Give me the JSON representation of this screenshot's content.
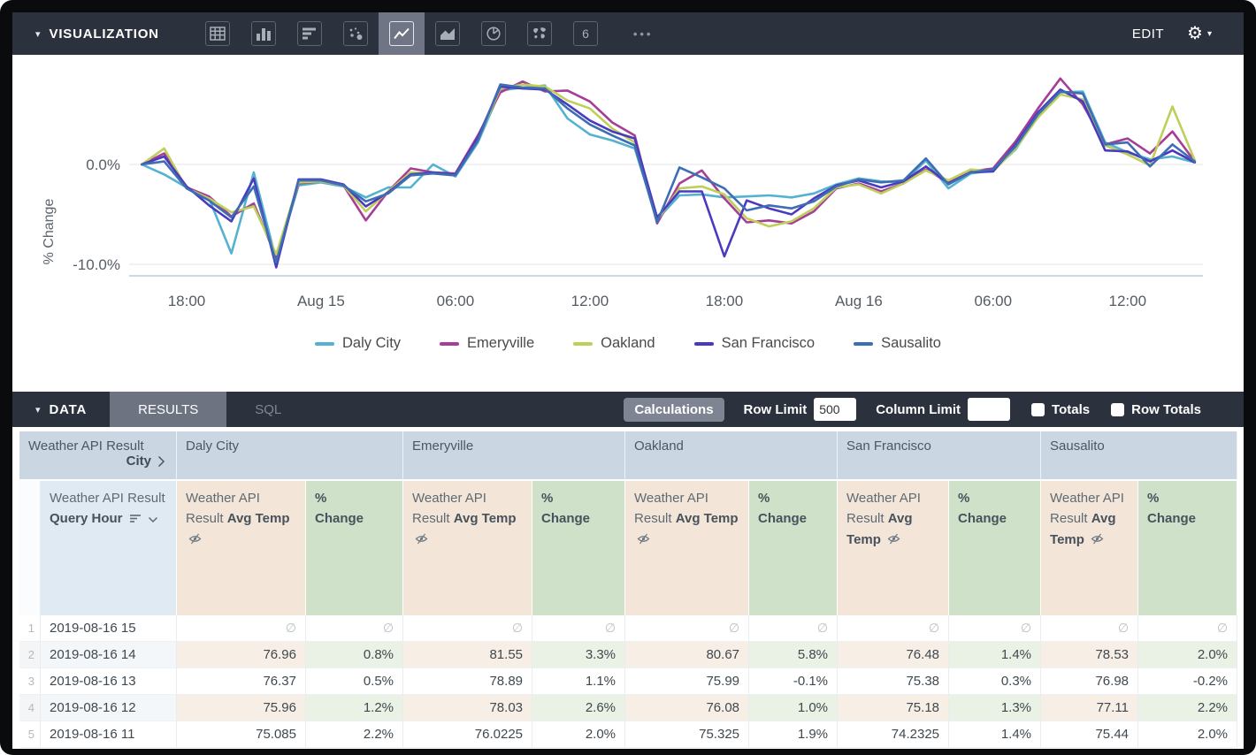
{
  "viz_bar": {
    "caret": "▾",
    "title": "VISUALIZATION",
    "icons": [
      {
        "name": "table"
      },
      {
        "name": "column-chart"
      },
      {
        "name": "bar-chart"
      },
      {
        "name": "scatter-plot"
      },
      {
        "name": "line-chart",
        "selected": true
      },
      {
        "name": "area-chart"
      },
      {
        "name": "pie-chart"
      },
      {
        "name": "map"
      },
      {
        "name": "single-value"
      }
    ],
    "more_icon": "•••",
    "edit_label": "EDIT",
    "gear_icon": "⚙",
    "gear_caret": "▾"
  },
  "chart_data": {
    "type": "line",
    "title": "",
    "ylabel": "% Change",
    "legend_position": "bottom",
    "grid": "horizontal",
    "ylim": [
      -11.5,
      9.8
    ],
    "y_ticks": [
      {
        "value": 0,
        "label": "0.0%"
      },
      {
        "value": -10,
        "label": "-10.0%"
      }
    ],
    "x_ticks": [
      {
        "index": 2,
        "label": "18:00"
      },
      {
        "index": 8,
        "label": "Aug 15"
      },
      {
        "index": 14,
        "label": "06:00"
      },
      {
        "index": 20,
        "label": "12:00"
      },
      {
        "index": 26,
        "label": "18:00"
      },
      {
        "index": 32,
        "label": "Aug 16"
      },
      {
        "index": 38,
        "label": "06:00"
      },
      {
        "index": 44,
        "label": "12:00"
      }
    ],
    "x_labels": [
      "Aug 14 16:00",
      "Aug 14 17:00",
      "Aug 14 18:00",
      "Aug 14 19:00",
      "Aug 14 20:00",
      "Aug 14 21:00",
      "Aug 14 22:00",
      "Aug 14 23:00",
      "Aug 15 00:00",
      "Aug 15 01:00",
      "Aug 15 02:00",
      "Aug 15 03:00",
      "Aug 15 04:00",
      "Aug 15 05:00",
      "Aug 15 06:00",
      "Aug 15 07:00",
      "Aug 15 08:00",
      "Aug 15 09:00",
      "Aug 15 10:00",
      "Aug 15 11:00",
      "Aug 15 12:00",
      "Aug 15 13:00",
      "Aug 15 14:00",
      "Aug 15 15:00",
      "Aug 15 16:00",
      "Aug 15 17:00",
      "Aug 15 18:00",
      "Aug 15 19:00",
      "Aug 15 20:00",
      "Aug 15 21:00",
      "Aug 15 22:00",
      "Aug 15 23:00",
      "Aug 16 00:00",
      "Aug 16 01:00",
      "Aug 16 02:00",
      "Aug 16 03:00",
      "Aug 16 04:00",
      "Aug 16 05:00",
      "Aug 16 06:00",
      "Aug 16 07:00",
      "Aug 16 08:00",
      "Aug 16 09:00",
      "Aug 16 10:00",
      "Aug 16 11:00",
      "Aug 16 12:00",
      "Aug 16 13:00",
      "Aug 16 14:00",
      "Aug 16 15:00"
    ],
    "series": [
      {
        "name": "Daly City",
        "color": "#54b2d0",
        "values": [
          0,
          -1.0,
          -2.3,
          -3.4,
          -8.9,
          -0.8,
          -9.6,
          -2.1,
          -1.8,
          -2.2,
          -3.3,
          -2.3,
          -2.3,
          0.0,
          -1.2,
          2.2,
          7.4,
          7.7,
          7.9,
          4.6,
          3.0,
          2.4,
          1.6,
          -5.5,
          -3.1,
          -3.0,
          -3.3,
          -3.2,
          -3.1,
          -3.3,
          -2.9,
          -2.0,
          -1.4,
          -1.7,
          -1.8,
          0.4,
          -2.4,
          -0.9,
          -0.6,
          1.5,
          4.9,
          7.2,
          7.3,
          2.2,
          1.2,
          0.5,
          0.8,
          0.2
        ]
      },
      {
        "name": "Emeryville",
        "color": "#a63d96",
        "values": [
          0,
          1.1,
          -2.3,
          -3.2,
          -5.2,
          -3.9,
          -9.3,
          -1.9,
          -1.7,
          -2.1,
          -5.6,
          -2.7,
          -0.4,
          -0.8,
          -0.9,
          2.9,
          7.2,
          8.3,
          7.3,
          7.4,
          6.3,
          4.2,
          2.9,
          -5.9,
          -1.9,
          -0.6,
          -3.4,
          -5.8,
          -5.6,
          -5.9,
          -4.7,
          -2.4,
          -1.9,
          -2.7,
          -1.9,
          -0.5,
          -1.8,
          -0.7,
          -0.4,
          2.3,
          5.6,
          8.6,
          6.0,
          2.0,
          2.6,
          1.1,
          3.3,
          0.3
        ]
      },
      {
        "name": "Oakland",
        "color": "#bfcf5a",
        "values": [
          0,
          1.6,
          -2.4,
          -3.4,
          -4.8,
          -4.2,
          -9.0,
          -1.8,
          -1.7,
          -2.1,
          -4.7,
          -2.7,
          -0.8,
          -0.9,
          -1.1,
          2.5,
          7.6,
          8.0,
          7.8,
          6.4,
          5.6,
          3.6,
          2.2,
          -5.6,
          -2.4,
          -2.2,
          -3.0,
          -5.4,
          -6.2,
          -5.7,
          -4.4,
          -2.3,
          -2.0,
          -2.9,
          -1.9,
          -0.6,
          -1.6,
          -0.5,
          -0.7,
          1.6,
          4.7,
          7.0,
          6.5,
          1.9,
          1.0,
          -0.1,
          5.8,
          0.4
        ]
      },
      {
        "name": "San Francisco",
        "color": "#4a3ac0",
        "values": [
          0,
          0.8,
          -2.2,
          -4.1,
          -5.7,
          -1.4,
          -10.3,
          -1.5,
          -1.5,
          -2.0,
          -4.2,
          -2.8,
          -1.0,
          -0.8,
          -1.0,
          2.7,
          7.8,
          7.6,
          7.5,
          6.0,
          4.4,
          3.3,
          2.6,
          -5.3,
          -2.7,
          -2.7,
          -9.2,
          -3.6,
          -4.4,
          -5.0,
          -3.4,
          -2.1,
          -1.6,
          -2.3,
          -1.7,
          -0.2,
          -1.9,
          -0.8,
          -0.7,
          2.0,
          5.2,
          7.5,
          6.3,
          1.4,
          1.3,
          0.3,
          1.4,
          0.2
        ]
      },
      {
        "name": "Sausalito",
        "color": "#3f6db4",
        "values": [
          0,
          0.3,
          -2.4,
          -3.6,
          -5.3,
          -2.2,
          -9.8,
          -1.6,
          -1.6,
          -2.1,
          -3.7,
          -2.9,
          -1.1,
          -0.9,
          -1.1,
          2.4,
          8.0,
          7.7,
          7.6,
          5.6,
          4.0,
          2.9,
          1.9,
          -5.8,
          -0.3,
          -1.3,
          -2.4,
          -4.6,
          -4.1,
          -4.4,
          -3.7,
          -2.2,
          -1.5,
          -1.8,
          -1.6,
          0.6,
          -2.0,
          -0.8,
          -0.5,
          1.8,
          5.0,
          7.3,
          7.1,
          2.0,
          2.2,
          -0.2,
          2.0,
          0.3
        ]
      }
    ]
  },
  "data_bar": {
    "caret": "▾",
    "title": "DATA",
    "tabs": [
      {
        "label": "RESULTS",
        "active": true
      },
      {
        "label": "SQL",
        "active": false
      }
    ],
    "calculations_label": "Calculations",
    "row_limit_label": "Row Limit",
    "row_limit_value": "500",
    "column_limit_label": "Column Limit",
    "column_limit_value": "",
    "totals_label": "Totals",
    "totals_checked": false,
    "row_totals_label": "Row Totals",
    "row_totals_checked": false
  },
  "table": {
    "null_symbol": "∅",
    "dim_group": {
      "line1": "Weather API Result",
      "line2": "City"
    },
    "dim_header": {
      "prefix": "Weather API Result",
      "bold": "Query Hour"
    },
    "measure_header": {
      "prefix": "Weather API Result",
      "bold": "Avg Temp"
    },
    "pct_header": {
      "line1": "%",
      "line2": "Change"
    },
    "columns": {
      "num_width": 24,
      "hour_width": 154,
      "groups": [
        {
          "label": "Daly City",
          "temp_width": 146,
          "pct_width": 110
        },
        {
          "label": "Emeryville",
          "temp_width": 146,
          "pct_width": 105
        },
        {
          "label": "Oakland",
          "temp_width": 140,
          "pct_width": 100
        },
        {
          "label": "San Francisco",
          "temp_width": 126,
          "pct_width": 104
        },
        {
          "label": "Sausalito",
          "temp_width": 110,
          "pct_width": 112
        }
      ]
    },
    "rows": [
      {
        "n": "1",
        "hour": "2019-08-16 15",
        "cells": [
          null,
          null,
          null,
          null,
          null,
          null,
          null,
          null,
          null,
          null
        ]
      },
      {
        "n": "2",
        "hour": "2019-08-16 14",
        "cells": [
          "76.96",
          "0.8%",
          "81.55",
          "3.3%",
          "80.67",
          "5.8%",
          "76.48",
          "1.4%",
          "78.53",
          "2.0%"
        ]
      },
      {
        "n": "3",
        "hour": "2019-08-16 13",
        "cells": [
          "76.37",
          "0.5%",
          "78.89",
          "1.1%",
          "75.99",
          "-0.1%",
          "75.38",
          "0.3%",
          "76.98",
          "-0.2%"
        ]
      },
      {
        "n": "4",
        "hour": "2019-08-16 12",
        "cells": [
          "75.96",
          "1.2%",
          "78.03",
          "2.6%",
          "76.08",
          "1.0%",
          "75.18",
          "1.3%",
          "77.11",
          "2.2%"
        ]
      },
      {
        "n": "5",
        "hour": "2019-08-16 11",
        "cells": [
          "75.085",
          "2.2%",
          "76.0225",
          "2.0%",
          "75.325",
          "1.9%",
          "74.2325",
          "1.4%",
          "75.44",
          "2.0%"
        ]
      }
    ]
  }
}
